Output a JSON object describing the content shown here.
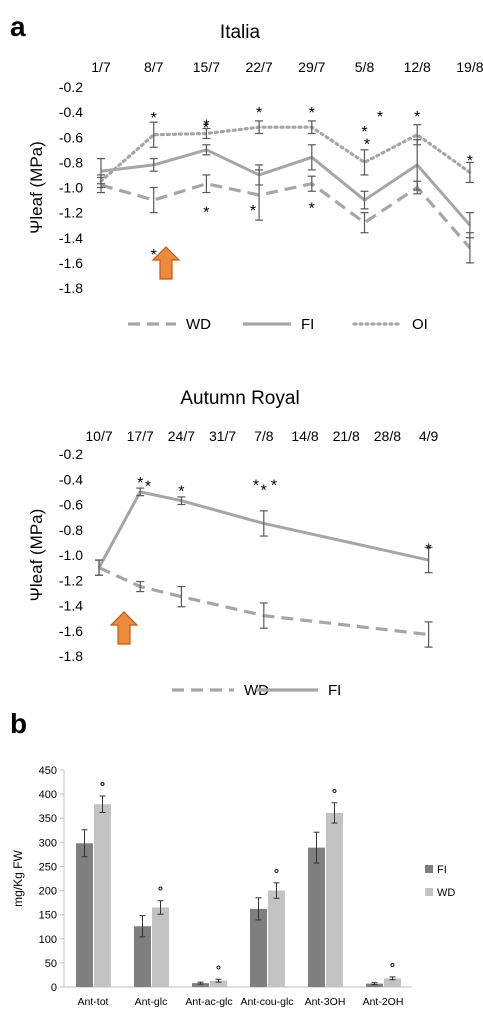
{
  "figure": {
    "panel_labels": [
      "a",
      "b"
    ]
  },
  "chart_data": [
    {
      "type": "line",
      "title": "Italia",
      "ylabel": "Ψleaf (MPa)",
      "xlabel": "",
      "categories": [
        "1/7",
        "8/7",
        "15/7",
        "22/7",
        "29/7",
        "5/8",
        "12/8",
        "19/8"
      ],
      "ylim": [
        -1.8,
        -0.2
      ],
      "yticks": [
        "-0.2",
        "-0.4",
        "-0.6",
        "-0.8",
        "-1.0",
        "-1.2",
        "-1.4",
        "-1.6",
        "-1.8"
      ],
      "grid": false,
      "legend": "bottom",
      "series": [
        {
          "name": "WD",
          "style": "dashed",
          "color": "#a6a6a6",
          "x": [
            "1/7",
            "8/7",
            "15/7",
            "22/7",
            "29/7",
            "5/8",
            "12/8",
            "19/8"
          ],
          "values": [
            -0.98,
            -1.1,
            -0.97,
            -1.06,
            -0.97,
            -1.28,
            -1.0,
            -1.48
          ],
          "errors": [
            0.06,
            0.1,
            0.07,
            0.2,
            0.06,
            0.08,
            0.05,
            0.12
          ]
        },
        {
          "name": "FI",
          "style": "solid",
          "color": "#a6a6a6",
          "x": [
            "1/7",
            "8/7",
            "15/7",
            "22/7",
            "29/7",
            "5/8",
            "12/8",
            "19/8"
          ],
          "values": [
            -0.87,
            -0.82,
            -0.7,
            -0.9,
            -0.76,
            -1.1,
            -0.82,
            -1.3
          ],
          "errors": [
            0.1,
            0.05,
            0.04,
            0.08,
            0.1,
            0.07,
            0.2,
            0.1
          ]
        },
        {
          "name": "OI",
          "style": "dotted",
          "color": "#a6a6a6",
          "x": [
            "1/7",
            "8/7",
            "15/7",
            "22/7",
            "29/7",
            "5/8",
            "12/8",
            "19/8"
          ],
          "values": [
            -0.95,
            -0.58,
            -0.57,
            -0.52,
            -0.52,
            -0.8,
            -0.58,
            -0.88
          ],
          "errors": [
            0.05,
            0.1,
            0.04,
            0.05,
            0.05,
            0.1,
            0.08,
            0.08
          ]
        }
      ],
      "annotations": {
        "significance_marker": "*"
      }
    },
    {
      "type": "line",
      "title": "Autumn Royal",
      "ylabel": "Ψleaf (MPa)",
      "xlabel": "",
      "categories": [
        "10/7",
        "17/7",
        "24/7",
        "31/7",
        "7/8",
        "14/8",
        "21/8",
        "28/8",
        "4/9"
      ],
      "ylim": [
        -1.8,
        -0.2
      ],
      "yticks": [
        "-0.2",
        "-0.4",
        "-0.6",
        "-0.8",
        "-1.0",
        "-1.2",
        "-1.4",
        "-1.6",
        "-1.8"
      ],
      "grid": false,
      "legend": "bottom",
      "series": [
        {
          "name": "WD",
          "style": "dashed",
          "color": "#a6a6a6",
          "x": [
            "10/7",
            "17/7",
            "24/7",
            "7/8",
            "4/9"
          ],
          "values": [
            -1.1,
            -1.25,
            -1.33,
            -1.48,
            -1.63
          ],
          "errors": [
            0.06,
            0.04,
            0.08,
            0.1,
            0.1
          ]
        },
        {
          "name": "FI",
          "style": "solid",
          "color": "#a6a6a6",
          "x": [
            "10/7",
            "17/7",
            "24/7",
            "7/8",
            "4/9"
          ],
          "values": [
            -1.1,
            -0.5,
            -0.57,
            -0.75,
            -1.04
          ],
          "errors": [
            0.06,
            0.03,
            0.03,
            0.1,
            0.1
          ]
        }
      ],
      "annotations": {
        "significance_marker": "*"
      }
    },
    {
      "type": "bar",
      "title": "",
      "ylabel": "mg/Kg FW",
      "xlabel": "",
      "categories": [
        "Ant-tot",
        "Ant-glc",
        "Ant-ac-glc",
        "Ant-cou-glc",
        "Ant-3OH",
        "Ant-2OH"
      ],
      "ylim": [
        0,
        450
      ],
      "yticks": [
        "0",
        "50",
        "100",
        "150",
        "200",
        "250",
        "300",
        "350",
        "400",
        "450"
      ],
      "grid": false,
      "legend": "right",
      "series": [
        {
          "name": "FI",
          "color": "#7f7f7f",
          "values": [
            298,
            126,
            8,
            162,
            289,
            7
          ],
          "errors": [
            28,
            22,
            2,
            23,
            32,
            2
          ]
        },
        {
          "name": "WD",
          "color": "#c3c3c3",
          "values": [
            379,
            165,
            13,
            200,
            361,
            18
          ],
          "errors": [
            17,
            14,
            3,
            16,
            21,
            3
          ]
        }
      ],
      "significance_marker": "°"
    }
  ]
}
